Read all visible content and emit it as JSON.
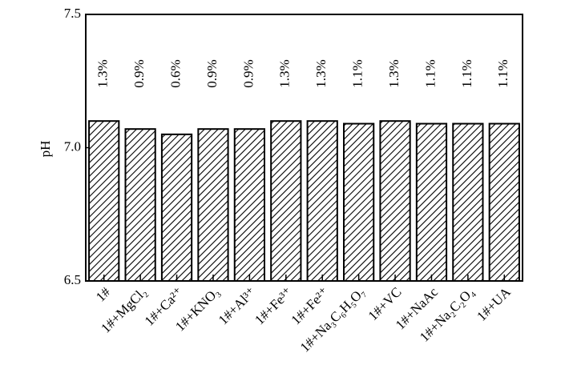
{
  "chart_data": {
    "type": "bar",
    "y_label": "pH",
    "categories": [
      "1#",
      "1#+MgCl₂",
      "1#+Ca²⁺",
      "1#+KNO₃",
      "1#+Al³⁺",
      "1#+Fe³⁺",
      "1#+Fe²⁺",
      "1#+Na₃C₆H₅O₇",
      "1#+VC",
      "1#+NaAc",
      "1#+Na₂C₂O₄",
      "1#+UA"
    ],
    "values": [
      7.1,
      7.07,
      7.05,
      7.07,
      7.07,
      7.1,
      7.1,
      7.09,
      7.1,
      7.09,
      7.09,
      7.09
    ],
    "bar_labels": [
      "1.3%",
      "0.9%",
      "0.6%",
      "0.9%",
      "0.9%",
      "1.3%",
      "1.3%",
      "1.1%",
      "1.3%",
      "1.1%",
      "1.1%",
      "1.1%"
    ],
    "ylim": [
      6.5,
      7.5
    ],
    "yticks": [
      6.5,
      {
        "value": 7,
        "label": "7.0"
      },
      7.5
    ],
    "color": "#000000",
    "hatch": true
  }
}
